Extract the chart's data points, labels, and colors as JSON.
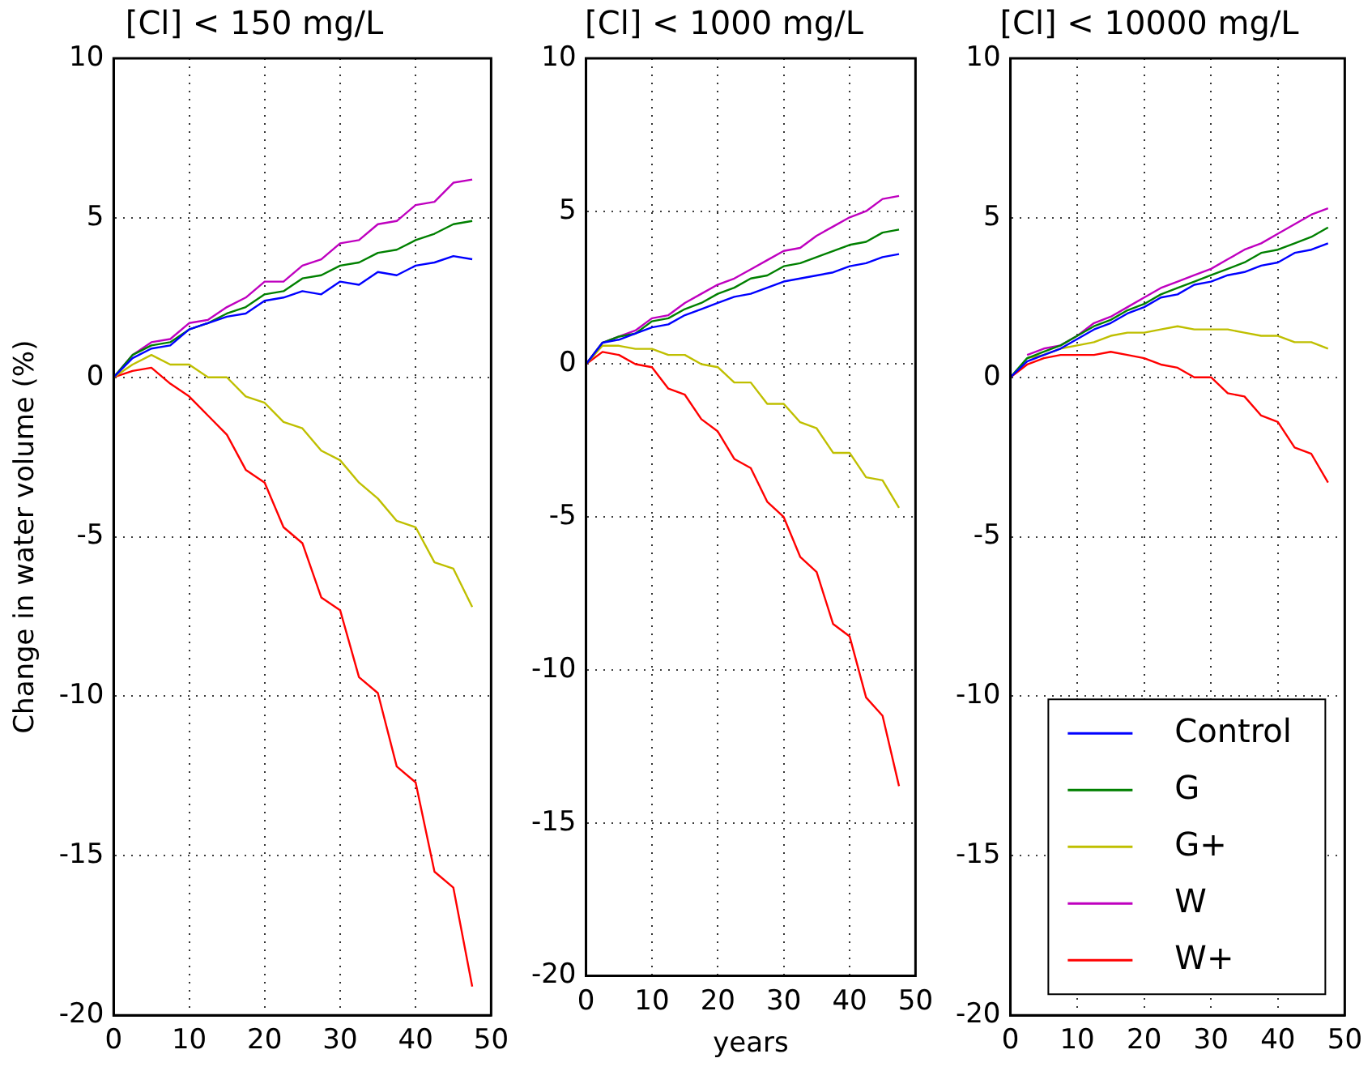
{
  "chart_data": [
    {
      "type": "line",
      "title": "[Cl] < 150 mg/L",
      "ylabel": "Change in water volume (%)",
      "x": [
        0,
        2.5,
        5,
        7.5,
        10,
        12.5,
        15,
        17.5,
        20,
        22.5,
        25,
        27.5,
        30,
        32.5,
        35,
        37.5,
        40,
        42.5,
        45,
        47.5
      ],
      "series": [
        {
          "color": "#0000ff",
          "values": [
            0,
            0.6,
            0.9,
            1.0,
            1.5,
            1.7,
            1.9,
            2.0,
            2.4,
            2.5,
            2.7,
            2.6,
            3.0,
            2.9,
            3.3,
            3.2,
            3.5,
            3.6,
            3.8,
            3.7
          ]
        },
        {
          "color": "#008000",
          "values": [
            0,
            0.7,
            1.0,
            1.1,
            1.5,
            1.7,
            2.0,
            2.2,
            2.6,
            2.7,
            3.1,
            3.2,
            3.5,
            3.6,
            3.9,
            4.0,
            4.3,
            4.5,
            4.8,
            4.9
          ]
        },
        {
          "color": "#bfbf00",
          "values": [
            0,
            0.4,
            0.7,
            0.4,
            0.4,
            0,
            0,
            -0.6,
            -0.8,
            -1.4,
            -1.6,
            -2.3,
            -2.6,
            -3.3,
            -3.8,
            -4.5,
            -4.7,
            -5.8,
            -6.0,
            -7.2
          ]
        },
        {
          "color": "#bf00bf",
          "values": [
            0,
            0.7,
            1.1,
            1.2,
            1.7,
            1.8,
            2.2,
            2.5,
            3.0,
            3.0,
            3.5,
            3.7,
            4.2,
            4.3,
            4.8,
            4.9,
            5.4,
            5.5,
            6.1,
            6.2
          ]
        },
        {
          "color": "#ff0000",
          "values": [
            0,
            0.2,
            0.3,
            -0.2,
            -0.6,
            -1.2,
            -1.8,
            -2.9,
            -3.3,
            -4.7,
            -5.2,
            -6.9,
            -7.3,
            -9.4,
            -9.9,
            -12.2,
            -12.7,
            -15.5,
            -16.0,
            -19.1
          ]
        }
      ],
      "xlim": [
        0,
        50
      ],
      "xticks": [
        0,
        10,
        20,
        30,
        40,
        50
      ],
      "ylim": [
        -20,
        10
      ],
      "yticks": [
        -20,
        -15,
        -10,
        -5,
        0,
        5,
        10
      ],
      "grid": true
    },
    {
      "type": "line",
      "title": "[Cl] < 1000 mg/L",
      "xlabel": "years",
      "x": [
        0,
        2.5,
        5,
        7.5,
        10,
        12.5,
        15,
        17.5,
        20,
        22.5,
        25,
        27.5,
        30,
        32.5,
        35,
        37.5,
        40,
        42.5,
        45,
        47.5
      ],
      "series": [
        {
          "color": "#0000ff",
          "values": [
            0,
            0.7,
            0.8,
            1.0,
            1.2,
            1.3,
            1.6,
            1.8,
            2.0,
            2.2,
            2.3,
            2.5,
            2.7,
            2.8,
            2.9,
            3.0,
            3.2,
            3.3,
            3.5,
            3.6
          ]
        },
        {
          "color": "#008000",
          "values": [
            0,
            0.7,
            0.9,
            1.0,
            1.4,
            1.5,
            1.8,
            2.0,
            2.3,
            2.5,
            2.8,
            2.9,
            3.2,
            3.3,
            3.5,
            3.7,
            3.9,
            4.0,
            4.3,
            4.4
          ]
        },
        {
          "color": "#bfbf00",
          "values": [
            0,
            0.6,
            0.6,
            0.5,
            0.5,
            0.3,
            0.3,
            0,
            -0.1,
            -0.6,
            -0.6,
            -1.3,
            -1.3,
            -1.9,
            -2.1,
            -2.9,
            -2.9,
            -3.7,
            -3.8,
            -4.7
          ]
        },
        {
          "color": "#bf00bf",
          "values": [
            0,
            0.7,
            0.9,
            1.1,
            1.5,
            1.6,
            2.0,
            2.3,
            2.6,
            2.8,
            3.1,
            3.4,
            3.7,
            3.8,
            4.2,
            4.5,
            4.8,
            5.0,
            5.4,
            5.5
          ]
        },
        {
          "color": "#ff0000",
          "values": [
            0,
            0.4,
            0.3,
            0,
            -0.1,
            -0.8,
            -1.0,
            -1.8,
            -2.2,
            -3.1,
            -3.4,
            -4.5,
            -5.0,
            -6.3,
            -6.8,
            -8.5,
            -8.9,
            -10.9,
            -11.5,
            -13.8
          ]
        }
      ],
      "xlim": [
        0,
        50
      ],
      "xticks": [
        0,
        10,
        20,
        30,
        40,
        50
      ],
      "ylim": [
        -20,
        10
      ],
      "yticks": [
        -20,
        -15,
        -10,
        -5,
        0,
        5,
        10
      ],
      "grid": true
    },
    {
      "type": "line",
      "title": "[Cl] < 10000 mg/L",
      "x": [
        0,
        2.5,
        5,
        7.5,
        10,
        12.5,
        15,
        17.5,
        20,
        22.5,
        25,
        27.5,
        30,
        32.5,
        35,
        37.5,
        40,
        42.5,
        45,
        47.5
      ],
      "series": [
        {
          "name": "Control",
          "color": "#0000ff",
          "values": [
            0,
            0.5,
            0.7,
            0.9,
            1.2,
            1.5,
            1.7,
            2.0,
            2.2,
            2.5,
            2.6,
            2.9,
            3.0,
            3.2,
            3.3,
            3.5,
            3.6,
            3.9,
            4.0,
            4.2
          ]
        },
        {
          "name": "G",
          "color": "#008000",
          "values": [
            0,
            0.6,
            0.8,
            1.0,
            1.3,
            1.6,
            1.8,
            2.1,
            2.3,
            2.6,
            2.8,
            3.0,
            3.2,
            3.4,
            3.6,
            3.9,
            4.0,
            4.2,
            4.4,
            4.7
          ]
        },
        {
          "name": "G+",
          "color": "#bfbf00",
          "values": [
            null,
            0.6,
            0.7,
            0.9,
            1.0,
            1.1,
            1.3,
            1.4,
            1.4,
            1.5,
            1.6,
            1.5,
            1.5,
            1.5,
            1.4,
            1.3,
            1.3,
            1.1,
            1.1,
            0.9
          ]
        },
        {
          "name": "W",
          "color": "#bf00bf",
          "values": [
            null,
            0.7,
            0.9,
            1.0,
            1.3,
            1.7,
            1.9,
            2.2,
            2.5,
            2.8,
            3.0,
            3.2,
            3.4,
            3.7,
            4.0,
            4.2,
            4.5,
            4.8,
            5.1,
            5.3
          ]
        },
        {
          "name": "W+",
          "color": "#ff0000",
          "values": [
            0,
            0.4,
            0.6,
            0.7,
            0.7,
            0.7,
            0.8,
            0.7,
            0.6,
            0.4,
            0.3,
            0,
            0,
            -0.5,
            -0.6,
            -1.2,
            -1.4,
            -2.2,
            -2.4,
            -3.3
          ]
        }
      ],
      "xlim": [
        0,
        50
      ],
      "xticks": [
        0,
        10,
        20,
        30,
        40,
        50
      ],
      "ylim": [
        -20,
        10
      ],
      "yticks": [
        -20,
        -15,
        -10,
        -5,
        0,
        5,
        10
      ],
      "grid": true,
      "legend": "bottom right"
    }
  ]
}
